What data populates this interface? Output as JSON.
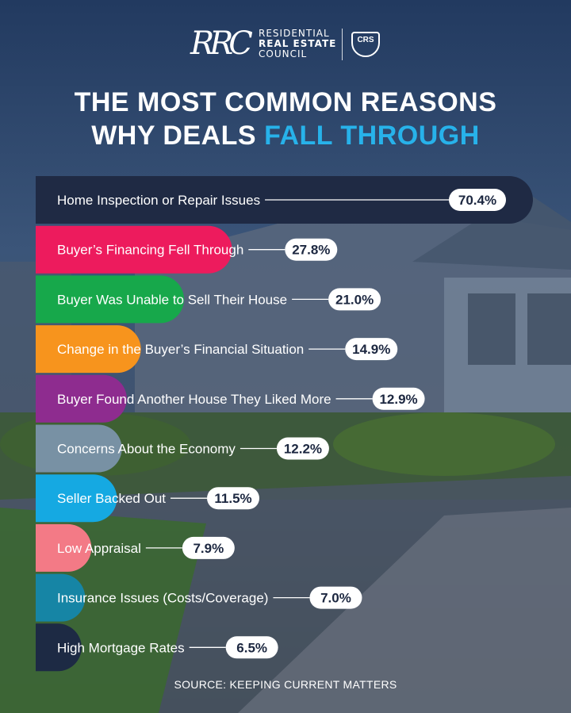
{
  "header": {
    "logo_mark": "RRC",
    "logo_lines": [
      "RESIDENTIAL",
      "REAL ESTATE",
      "COUNCIL"
    ],
    "badge": "CRS"
  },
  "title": {
    "line1": "THE MOST COMMON REASONS",
    "line2_plain": "WHY DEALS ",
    "line2_accent": "FALL THROUGH"
  },
  "chart_data": {
    "type": "bar",
    "orientation": "horizontal",
    "unit": "%",
    "categories": [
      "Home Inspection or Repair Issues",
      "Buyer’s Financing Fell Through",
      "Buyer Was Unable to Sell Their House",
      "Change in the Buyer’s Financial Situation",
      "Buyer Found Another House They Liked More",
      "Concerns About the Economy",
      "Seller Backed Out",
      "Low Appraisal",
      "Insurance Issues (Costs/Coverage)",
      "High Mortgage Rates"
    ],
    "values": [
      70.4,
      27.8,
      21.0,
      14.9,
      12.9,
      12.2,
      11.5,
      7.9,
      7.0,
      6.5
    ],
    "value_labels": [
      "70.4%",
      "27.8%",
      "21.0%",
      "14.9%",
      "12.9%",
      "12.2%",
      "11.5%",
      "7.9%",
      "7.0%",
      "6.5%"
    ],
    "colors": [
      "#1f2a44",
      "#ed1b5d",
      "#17a84b",
      "#f7941d",
      "#8e2c8f",
      "#7891a4",
      "#15a9e2",
      "#f37a86",
      "#1685a5",
      "#1d2a44"
    ],
    "xlim": [
      0,
      70.4
    ],
    "grid": false,
    "legend": "none"
  },
  "source": "SOURCE: KEEPING CURRENT MATTERS",
  "colors": {
    "accent": "#27b2ea",
    "background": "#2c3e5e"
  }
}
